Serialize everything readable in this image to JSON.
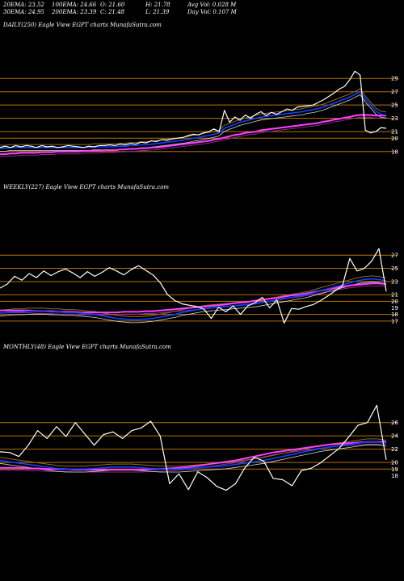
{
  "header": {
    "row1": [
      "20EMA: 23.52",
      "100EMA: 24.66",
      "O: 21.60",
      "H: 21.78",
      "Avg Vol: 0.028 M"
    ],
    "row2": [
      "30EMA: 24.95",
      "200EMA: 23.39",
      "C: 21.48",
      "L: 21.39",
      "Day Vol: 0.107 M"
    ]
  },
  "colors": {
    "price": "#ffffff",
    "level": "#b8700a",
    "ema_fast": "#1040ff",
    "ema_slow": "#ff40ff"
  },
  "chart_data": [
    {
      "type": "line",
      "title": "DAILY(250) Eagle   View  EGPT charts MunafaSutra.com",
      "y_ticks": [
        29,
        27,
        25,
        23,
        21,
        20,
        18
      ],
      "ylim": [
        17,
        30
      ],
      "levels": [
        29,
        27,
        25,
        23,
        21,
        20,
        18
      ],
      "series": [
        {
          "role": "price",
          "values": [
            18.6,
            18.8,
            18.6,
            18.9,
            18.7,
            18.9,
            18.8,
            18.6,
            18.9,
            18.7,
            18.8,
            18.6,
            18.7,
            18.9,
            18.8,
            18.7,
            18.6,
            18.8,
            18.7,
            18.9,
            18.9,
            19.0,
            18.9,
            19.1,
            19.0,
            19.2,
            19.1,
            19.4,
            19.3,
            19.6,
            19.5,
            19.8,
            19.7,
            19.9,
            20.0,
            20.1,
            20.4,
            20.6,
            20.5,
            20.8,
            21.0,
            21.4,
            21.0,
            24.2,
            22.4,
            23.2,
            22.7,
            23.5,
            23.0,
            23.6,
            24.0,
            23.4,
            23.9,
            23.6,
            24.0,
            24.4,
            24.2,
            24.7,
            24.8,
            24.9,
            25.0,
            25.4,
            25.8,
            26.3,
            26.8,
            27.4,
            27.8,
            28.8,
            30.1,
            29.5,
            21.2,
            20.8,
            21.0,
            21.6,
            21.5
          ]
        },
        {
          "role": "ema_fast",
          "values": [
            18.5,
            18.5,
            18.6,
            18.6,
            18.6,
            18.6,
            18.6,
            18.6,
            18.6,
            18.6,
            18.6,
            18.6,
            18.6,
            18.6,
            18.6,
            18.6,
            18.6,
            18.6,
            18.7,
            18.7,
            18.7,
            18.7,
            18.7,
            18.8,
            18.8,
            18.9,
            18.9,
            19.0,
            19.0,
            19.1,
            19.2,
            19.3,
            19.4,
            19.5,
            19.6,
            19.7,
            19.8,
            20.0,
            20.1,
            20.3,
            20.4,
            20.6,
            20.8,
            21.5,
            21.8,
            22.1,
            22.4,
            22.6,
            22.8,
            23.0,
            23.2,
            23.3,
            23.4,
            23.5,
            23.6,
            23.7,
            23.8,
            23.9,
            24.0,
            24.2,
            24.3,
            24.5,
            24.7,
            25.0,
            25.3,
            25.6,
            25.9,
            26.2,
            26.6,
            27.0,
            25.9,
            25.0,
            24.1,
            23.6,
            23.5
          ]
        },
        {
          "role": "ema_slow",
          "values": [
            17.6,
            17.6,
            17.7,
            17.7,
            17.8,
            17.8,
            17.8,
            17.8,
            17.9,
            17.9,
            17.9,
            18.0,
            18.0,
            18.0,
            18.0,
            18.0,
            18.1,
            18.1,
            18.1,
            18.1,
            18.2,
            18.2,
            18.2,
            18.3,
            18.3,
            18.4,
            18.4,
            18.5,
            18.5,
            18.6,
            18.6,
            18.7,
            18.8,
            18.9,
            19.0,
            19.1,
            19.2,
            19.3,
            19.4,
            19.5,
            19.6,
            19.8,
            19.9,
            20.1,
            20.3,
            20.5,
            20.6,
            20.8,
            20.9,
            21.0,
            21.2,
            21.3,
            21.4,
            21.5,
            21.6,
            21.7,
            21.8,
            21.9,
            22.0,
            22.1,
            22.2,
            22.3,
            22.5,
            22.6,
            22.8,
            22.9,
            23.1,
            23.2,
            23.4,
            23.5,
            23.5,
            23.5,
            23.4,
            23.4,
            23.4
          ]
        }
      ]
    },
    {
      "type": "line",
      "title": "WEEKLY(227) Eagle   View  EGPT charts MunafaSutra.com",
      "y_ticks": [
        27,
        25,
        23,
        21,
        20,
        19,
        18,
        17
      ],
      "ylim": [
        16,
        28.5
      ],
      "levels": [
        27,
        25,
        23,
        21,
        20,
        18,
        17
      ],
      "series": [
        {
          "role": "price",
          "values": [
            22.0,
            22.6,
            23.8,
            23.2,
            24.2,
            23.6,
            24.6,
            23.9,
            24.5,
            24.9,
            24.3,
            23.6,
            24.5,
            23.8,
            24.4,
            25.1,
            24.6,
            24.0,
            24.8,
            25.4,
            24.7,
            24.0,
            22.8,
            21.0,
            20.1,
            19.6,
            19.4,
            19.2,
            18.8,
            17.4,
            19.1,
            18.4,
            19.3,
            18.0,
            19.3,
            19.8,
            20.6,
            19.0,
            20.2,
            16.7,
            18.9,
            18.8,
            19.2,
            19.5,
            20.1,
            20.8,
            21.6,
            22.4,
            26.5,
            24.6,
            25.0,
            26.1,
            28.0,
            21.5
          ]
        },
        {
          "role": "ema_fast",
          "values": [
            18.2,
            18.3,
            18.4,
            18.4,
            18.5,
            18.5,
            18.5,
            18.4,
            18.4,
            18.3,
            18.3,
            18.2,
            18.1,
            18.0,
            17.8,
            17.6,
            17.4,
            17.3,
            17.2,
            17.2,
            17.3,
            17.4,
            17.6,
            17.8,
            18.0,
            18.3,
            18.5,
            18.7,
            18.9,
            19.0,
            19.1,
            19.2,
            19.3,
            19.4,
            19.5,
            19.6,
            19.8,
            20.0,
            20.2,
            20.4,
            20.6,
            20.8,
            21.0,
            21.3,
            21.6,
            21.9,
            22.2,
            22.5,
            22.8,
            23.1,
            23.3,
            23.4,
            23.3,
            23.1
          ]
        },
        {
          "role": "ema_slow",
          "values": [
            18.6,
            18.6,
            18.6,
            18.6,
            18.6,
            18.5,
            18.5,
            18.5,
            18.4,
            18.4,
            18.4,
            18.3,
            18.3,
            18.3,
            18.3,
            18.3,
            18.3,
            18.4,
            18.4,
            18.4,
            18.5,
            18.5,
            18.6,
            18.7,
            18.8,
            18.9,
            19.0,
            19.1,
            19.2,
            19.3,
            19.4,
            19.5,
            19.7,
            19.8,
            19.9,
            20.1,
            20.2,
            20.4,
            20.5,
            20.7,
            20.9,
            21.0,
            21.2,
            21.4,
            21.6,
            21.8,
            22.0,
            22.2,
            22.4,
            22.5,
            22.6,
            22.7,
            22.7,
            22.6
          ]
        }
      ]
    },
    {
      "type": "line",
      "title": "MONTHLY(48) Eagle   View  EGPT charts MunafaSutra.com",
      "y_ticks": [
        26,
        24,
        22,
        20,
        19,
        18
      ],
      "ylim": [
        16,
        29
      ],
      "levels": [
        26,
        24,
        22,
        20,
        19
      ],
      "series": [
        {
          "role": "price",
          "values": [
            21.6,
            21.5,
            20.9,
            22.6,
            24.8,
            23.6,
            25.4,
            23.9,
            26.0,
            24.3,
            22.6,
            24.2,
            24.6,
            23.6,
            24.8,
            25.2,
            26.2,
            24.0,
            16.8,
            18.3,
            15.9,
            18.6,
            17.7,
            16.4,
            15.8,
            16.8,
            19.2,
            20.8,
            20.2,
            17.6,
            17.4,
            16.5,
            18.8,
            19.1,
            19.9,
            21.0,
            22.1,
            23.8,
            25.6,
            26.0,
            28.6,
            20.4
          ]
        },
        {
          "role": "ema_fast",
          "values": [
            20.3,
            20.1,
            19.9,
            19.7,
            19.5,
            19.3,
            19.1,
            19.0,
            19.0,
            19.0,
            19.1,
            19.2,
            19.3,
            19.3,
            19.3,
            19.2,
            19.1,
            19.0,
            19.0,
            19.0,
            19.1,
            19.2,
            19.3,
            19.4,
            19.5,
            19.7,
            19.9,
            20.1,
            20.3,
            20.6,
            20.9,
            21.2,
            21.5,
            21.8,
            22.1,
            22.3,
            22.5,
            22.7,
            22.9,
            23.1,
            23.1,
            22.9
          ]
        },
        {
          "role": "ema_slow",
          "values": [
            19.2,
            19.2,
            19.2,
            19.1,
            19.1,
            19.0,
            19.0,
            19.0,
            18.9,
            18.9,
            18.9,
            18.9,
            18.9,
            18.9,
            18.9,
            18.9,
            19.0,
            19.0,
            19.1,
            19.2,
            19.3,
            19.5,
            19.7,
            19.9,
            20.1,
            20.3,
            20.6,
            20.9,
            21.2,
            21.5,
            21.7,
            21.9,
            22.1,
            22.3,
            22.5,
            22.7,
            22.8,
            22.9,
            23.0,
            23.1,
            23.1,
            23.1
          ]
        }
      ]
    }
  ]
}
